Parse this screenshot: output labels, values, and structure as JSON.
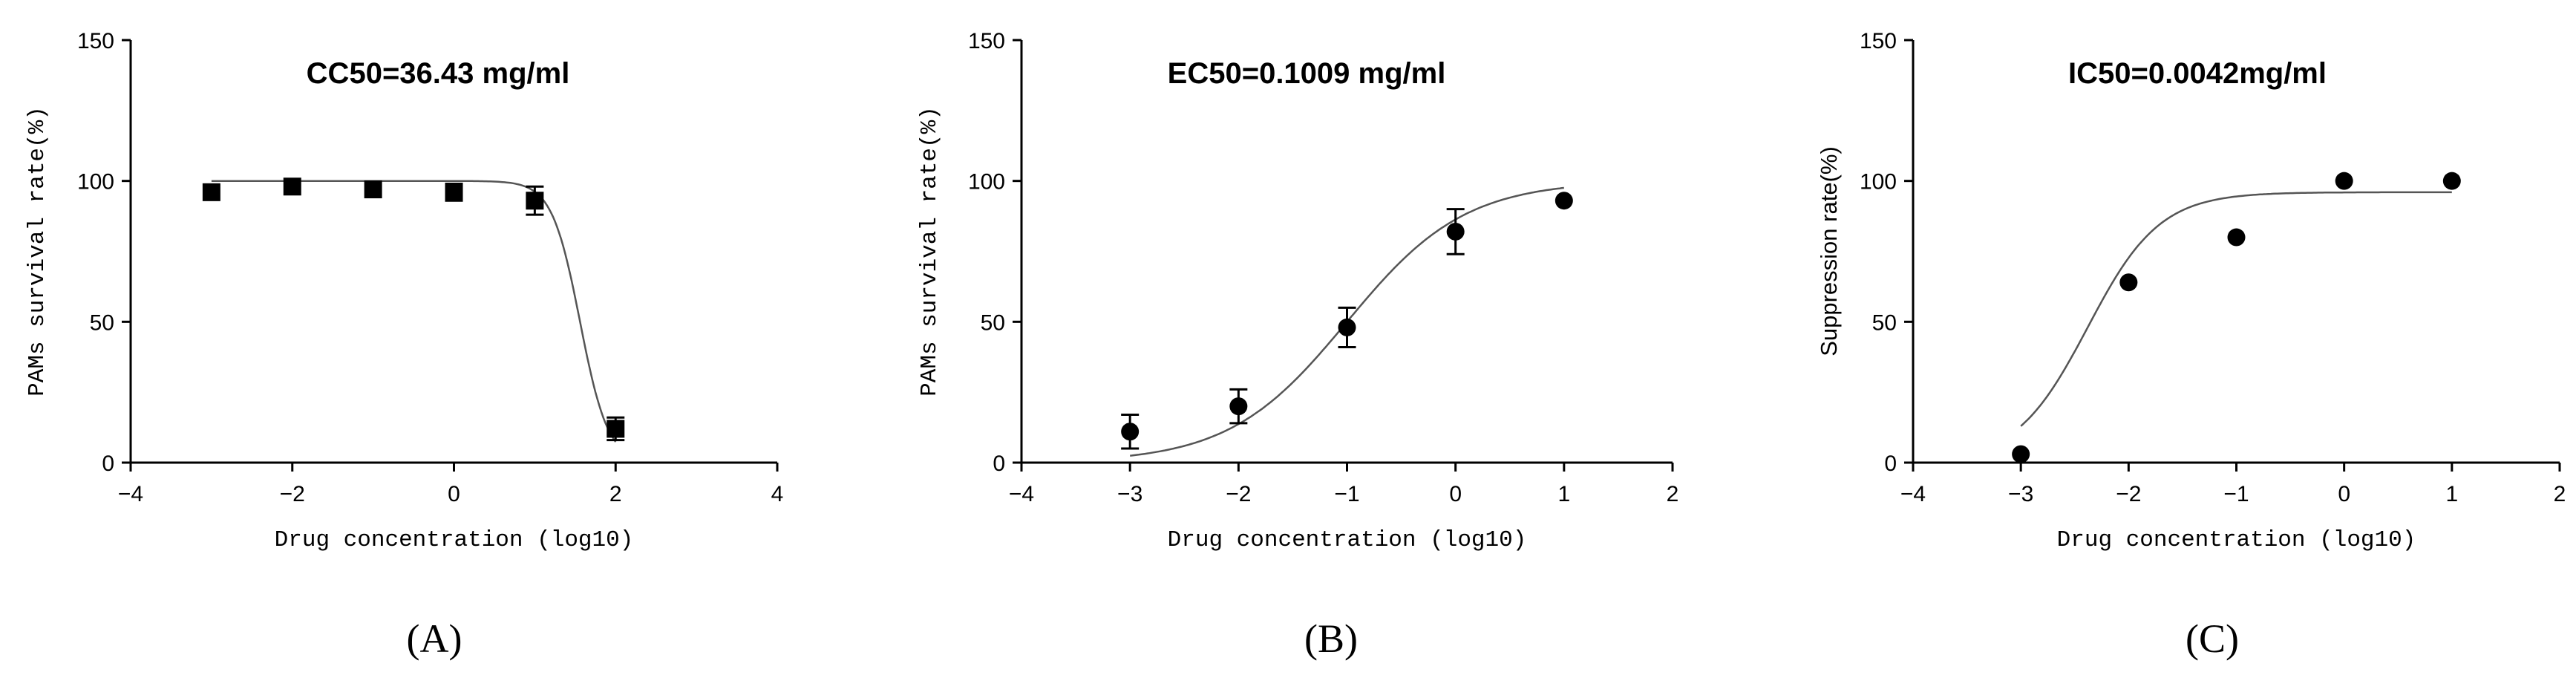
{
  "chart_data": [
    {
      "type": "scatter",
      "panel_label": "(A)",
      "title": "CC50=36.43 mg/ml",
      "xlabel": "Drug concentration (log10)",
      "ylabel": "PAMs survival rate(%)",
      "xlim": [
        -4,
        4
      ],
      "ylim": [
        0,
        150
      ],
      "xticks": [
        -4,
        -2,
        0,
        2,
        4
      ],
      "yticks": [
        0,
        50,
        100,
        150
      ],
      "marker": "square",
      "fit_curve": {
        "model": "decreasing",
        "top": 100,
        "bottom": 0,
        "log_c50": 1.56,
        "hill": 2.5
      },
      "series": [
        {
          "x": [
            -3,
            -2,
            -1,
            0,
            1,
            2
          ],
          "y": [
            96,
            98,
            97,
            96,
            93,
            12
          ],
          "error": [
            0,
            0,
            0,
            3,
            5,
            4
          ]
        }
      ]
    },
    {
      "type": "scatter",
      "panel_label": "(B)",
      "title": "EC50=0.1009 mg/ml",
      "xlabel": "Drug concentration (log10)",
      "ylabel": "PAMs survival rate(%)",
      "xlim": [
        -4,
        2
      ],
      "ylim": [
        0,
        150
      ],
      "xticks": [
        -4,
        -3,
        -2,
        -1,
        0,
        1,
        2
      ],
      "yticks": [
        0,
        50,
        100,
        150
      ],
      "marker": "circle",
      "fit_curve": {
        "model": "increasing",
        "top": 100,
        "bottom": 0,
        "log_c50": -1.0,
        "hill": 0.8
      },
      "series": [
        {
          "x": [
            -3,
            -2,
            -1,
            0,
            1
          ],
          "y": [
            11,
            20,
            48,
            82,
            93
          ],
          "error": [
            6,
            6,
            7,
            8,
            0
          ]
        }
      ]
    },
    {
      "type": "scatter",
      "panel_label": "(C)",
      "title": "IC50=0.0042mg/ml",
      "xlabel": "Drug concentration (log10)",
      "ylabel": "Suppression rate(%)",
      "xlim": [
        -4,
        2
      ],
      "ylim": [
        0,
        150
      ],
      "xticks": [
        -4,
        -3,
        -2,
        -1,
        0,
        1,
        2
      ],
      "yticks": [
        0,
        50,
        100,
        150
      ],
      "marker": "circle",
      "fit_curve": {
        "model": "increasing",
        "top": 96,
        "bottom": 0,
        "log_c50": -2.38,
        "hill": 1.3
      },
      "series": [
        {
          "x": [
            -3,
            -2,
            -1,
            0,
            1
          ],
          "y": [
            3,
            64,
            80,
            100,
            100
          ],
          "error": [
            0,
            0,
            0,
            0,
            0
          ]
        }
      ]
    }
  ]
}
